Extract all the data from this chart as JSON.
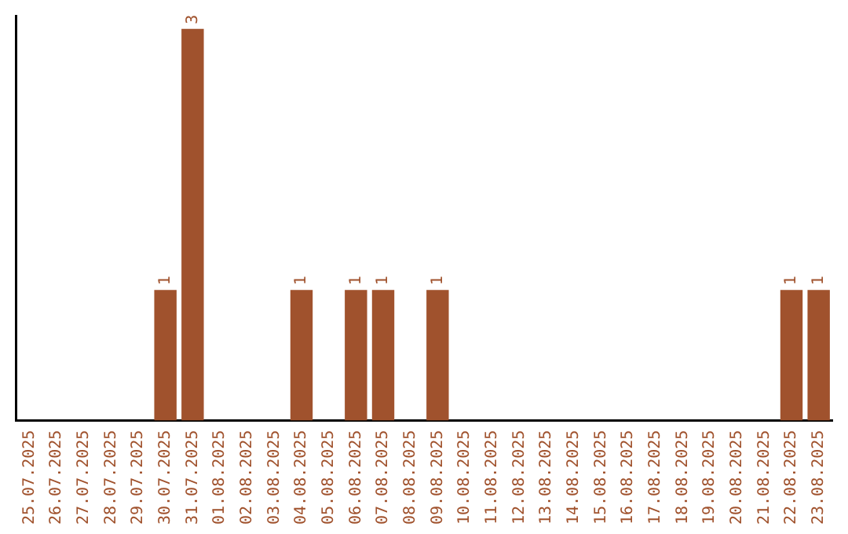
{
  "chart_data": {
    "type": "bar",
    "categories": [
      "25.07.2025",
      "26.07.2025",
      "27.07.2025",
      "28.07.2025",
      "29.07.2025",
      "30.07.2025",
      "31.07.2025",
      "01.08.2025",
      "02.08.2025",
      "03.08.2025",
      "04.08.2025",
      "05.08.2025",
      "06.08.2025",
      "07.08.2025",
      "08.08.2025",
      "09.08.2025",
      "10.08.2025",
      "11.08.2025",
      "12.08.2025",
      "13.08.2025",
      "14.08.2025",
      "15.08.2025",
      "16.08.2025",
      "17.08.2025",
      "18.08.2025",
      "19.08.2025",
      "20.08.2025",
      "21.08.2025",
      "22.08.2025",
      "23.08.2025"
    ],
    "values": [
      0,
      0,
      0,
      0,
      0,
      1,
      3,
      0,
      0,
      0,
      1,
      0,
      1,
      1,
      0,
      1,
      0,
      0,
      0,
      0,
      0,
      0,
      0,
      0,
      0,
      0,
      0,
      0,
      1,
      1
    ],
    "value_labels": [
      null,
      null,
      null,
      null,
      null,
      "1",
      "3",
      null,
      null,
      null,
      "1",
      null,
      "1",
      "1",
      null,
      "1",
      null,
      null,
      null,
      null,
      null,
      null,
      null,
      null,
      null,
      null,
      null,
      null,
      "1",
      "1"
    ],
    "color": "#a0522d",
    "ylim": [
      0,
      3.1
    ],
    "tick_labels": "x",
    "grid": false,
    "legend": false
  }
}
